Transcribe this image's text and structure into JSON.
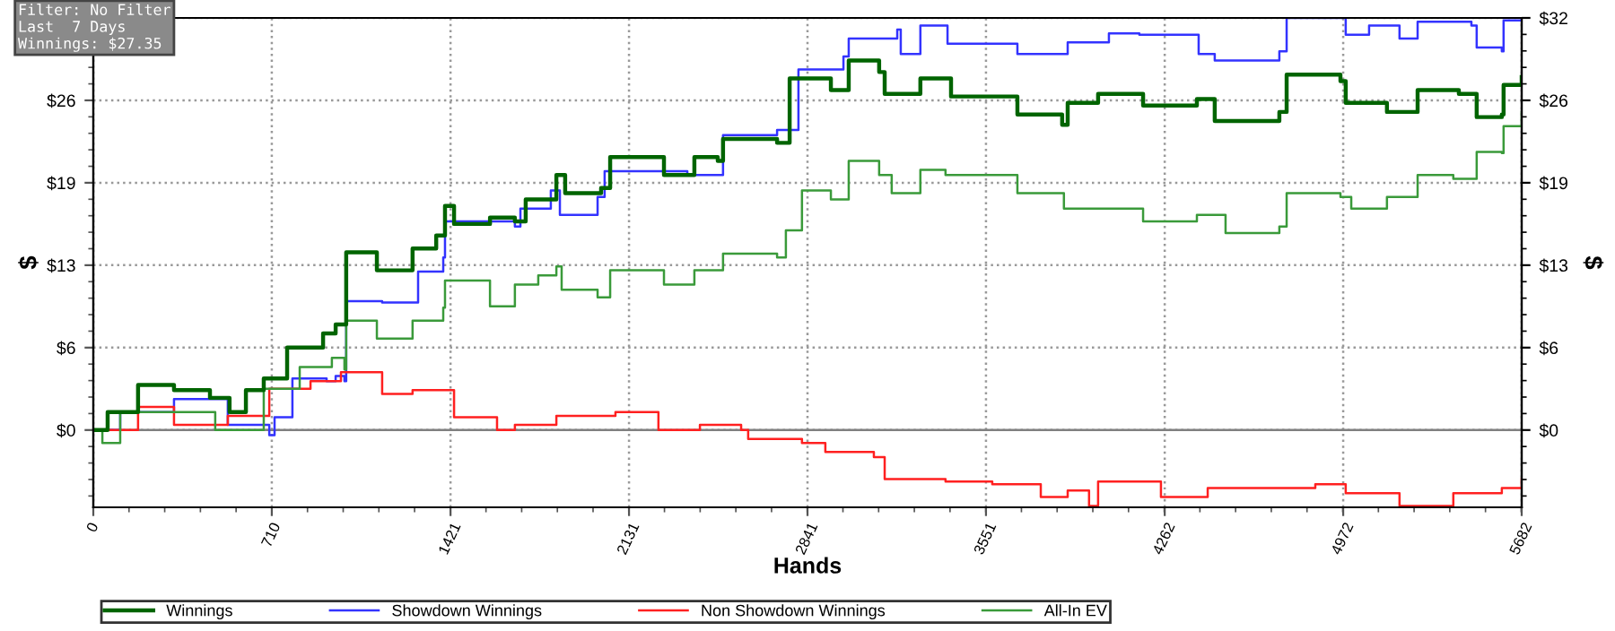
{
  "chart_data": {
    "type": "step",
    "xlabel": "Hands",
    "ylabel": "$",
    "y2label": "$",
    "annotations": [
      "Filter: No Filter\nLast  7 Days\nWinnings: $27.35"
    ],
    "xlim": [
      0,
      5682
    ],
    "xticks": [
      0,
      710,
      1421,
      2131,
      2841,
      3551,
      4262,
      4972,
      5682
    ],
    "ylim": [
      -6,
      32
    ],
    "yticks": [
      {
        "value": 0,
        "label": "$0"
      },
      {
        "value": 6.4,
        "label": "$6"
      },
      {
        "value": 12.8,
        "label": "$13"
      },
      {
        "value": 19.2,
        "label": "$19"
      },
      {
        "value": 25.6,
        "label": "$26"
      },
      {
        "value": 32,
        "label": null
      }
    ],
    "y2lim": [
      -6,
      32
    ],
    "y2ticks": [
      {
        "value": 0,
        "label": "$0"
      },
      {
        "value": 6.4,
        "label": "$6"
      },
      {
        "value": 12.8,
        "label": "$13"
      },
      {
        "value": 19.2,
        "label": "$19"
      },
      {
        "value": 25.6,
        "label": "$26"
      },
      {
        "value": 32,
        "label": "$32"
      }
    ],
    "grid": true,
    "legend": "bottom",
    "line_style": "solid",
    "ref_lines": [
      {
        "axis": "y",
        "value": 0,
        "label": null,
        "color": "#808080"
      }
    ],
    "series": [
      {
        "name": "Winnings",
        "color": "#006400",
        "x": [
          0,
          57,
          178,
          321,
          464,
          542,
          607,
          678,
          771,
          914,
          964,
          999,
          1006,
          1128,
          1270,
          1364,
          1399,
          1435,
          1578,
          1677,
          1720,
          1842,
          1877,
          2020,
          2056,
          2270,
          2391,
          2484,
          2505,
          2720,
          2770,
          2934,
          3005,
          3126,
          3148,
          3290,
          3412,
          3676,
          3854,
          3876,
          3997,
          4176,
          4390,
          4461,
          4718,
          4747,
          4961,
          4982,
          5146,
          5268,
          5432,
          5503,
          5603,
          5610,
          5682
        ],
        "values": [
          0,
          1.4,
          3.5,
          3.1,
          2.5,
          1.4,
          3.1,
          4.0,
          6.4,
          7.5,
          8.2,
          8.2,
          13.8,
          12.4,
          14.1,
          15.1,
          17.4,
          16.0,
          16.5,
          16.2,
          17.9,
          19.8,
          18.4,
          18.8,
          21.2,
          19.8,
          21.2,
          20.9,
          22.6,
          22.3,
          27.3,
          26.4,
          28.7,
          27.8,
          26.1,
          27.3,
          25.9,
          24.5,
          23.7,
          25.4,
          26.1,
          25.2,
          25.7,
          24.0,
          24.7,
          27.6,
          27.1,
          25.4,
          24.7,
          26.4,
          26.1,
          24.3,
          24.5,
          26.8,
          27.4
        ]
      },
      {
        "name": "Showdown Winnings",
        "color": "#3333ff",
        "x": [
          0,
          107,
          321,
          535,
          700,
          721,
          792,
          928,
          964,
          999,
          1006,
          1149,
          1292,
          1392,
          1399,
          1578,
          1677,
          1699,
          1820,
          1856,
          2006,
          2034,
          2363,
          2505,
          2720,
          2805,
          2984,
          3005,
          3198,
          3212,
          3290,
          3398,
          3676,
          3861,
          3876,
          4040,
          4161,
          4397,
          4461,
          4718,
          4747,
          4982,
          5075,
          5196,
          5268,
          5482,
          5503,
          5603,
          5610,
          5682
        ],
        "values": [
          0,
          1.4,
          2.4,
          0.4,
          -0.4,
          1.0,
          4.0,
          3.8,
          4.2,
          3.8,
          10.0,
          9.9,
          12.3,
          13.4,
          16.2,
          16.2,
          15.8,
          17.2,
          18.6,
          16.7,
          18.1,
          20.1,
          19.8,
          22.9,
          23.3,
          28.0,
          29.0,
          30.4,
          31.1,
          29.2,
          31.4,
          30.0,
          29.2,
          29.2,
          30.1,
          30.8,
          30.7,
          29.2,
          28.7,
          29.4,
          32.0,
          30.7,
          31.4,
          30.4,
          31.7,
          31.4,
          29.7,
          29.4,
          31.8,
          31.8
        ]
      },
      {
        "name": "Non Showdown Winnings",
        "color": "#ff2020",
        "x": [
          0,
          178,
          321,
          535,
          700,
          864,
          985,
          1149,
          1270,
          1435,
          1606,
          1677,
          1842,
          2077,
          2248,
          2413,
          2577,
          2605,
          2819,
          2912,
          3105,
          3148,
          3390,
          3576,
          3769,
          3876,
          3961,
          3997,
          4247,
          4433,
          4861,
          4982,
          5196,
          5410,
          5603,
          5682
        ],
        "values": [
          0,
          1.8,
          0.4,
          1.1,
          3.2,
          3.8,
          4.5,
          2.8,
          3.1,
          1.0,
          0,
          0.4,
          1.1,
          1.4,
          0,
          0.4,
          0,
          -0.7,
          -1.0,
          -1.7,
          -2.1,
          -3.8,
          -4.0,
          -4.2,
          -5.2,
          -4.7,
          -5.9,
          -4.0,
          -5.2,
          -4.5,
          -4.2,
          -4.9,
          -5.9,
          -4.9,
          -4.5,
          -3.8
        ]
      },
      {
        "name": "All-In EV",
        "color": "#3a9a3a",
        "x": [
          0,
          36,
          107,
          321,
          485,
          678,
          821,
          949,
          999,
          1006,
          1128,
          1270,
          1392,
          1399,
          1578,
          1677,
          1770,
          1842,
          1863,
          2006,
          2056,
          2270,
          2391,
          2505,
          2720,
          2755,
          2819,
          2934,
          3005,
          3126,
          3176,
          3290,
          3390,
          3676,
          3861,
          3997,
          4176,
          4390,
          4504,
          4718,
          4747,
          4961,
          5004,
          5146,
          5268,
          5410,
          5503,
          5603,
          5610,
          5682
        ],
        "values": [
          0,
          -1.0,
          1.4,
          1.4,
          0,
          3.2,
          4.9,
          5.6,
          4.7,
          8.5,
          7.1,
          8.5,
          9.5,
          11.6,
          9.6,
          11.3,
          12.0,
          12.7,
          10.9,
          10.3,
          12.4,
          11.3,
          12.4,
          13.7,
          13.4,
          15.5,
          18.6,
          17.9,
          20.9,
          19.8,
          18.4,
          20.2,
          19.8,
          18.4,
          17.2,
          17.2,
          16.2,
          16.7,
          15.3,
          15.8,
          18.4,
          18.1,
          17.2,
          18.1,
          19.8,
          19.5,
          21.6,
          21.5,
          23.6,
          24.7
        ]
      }
    ]
  }
}
